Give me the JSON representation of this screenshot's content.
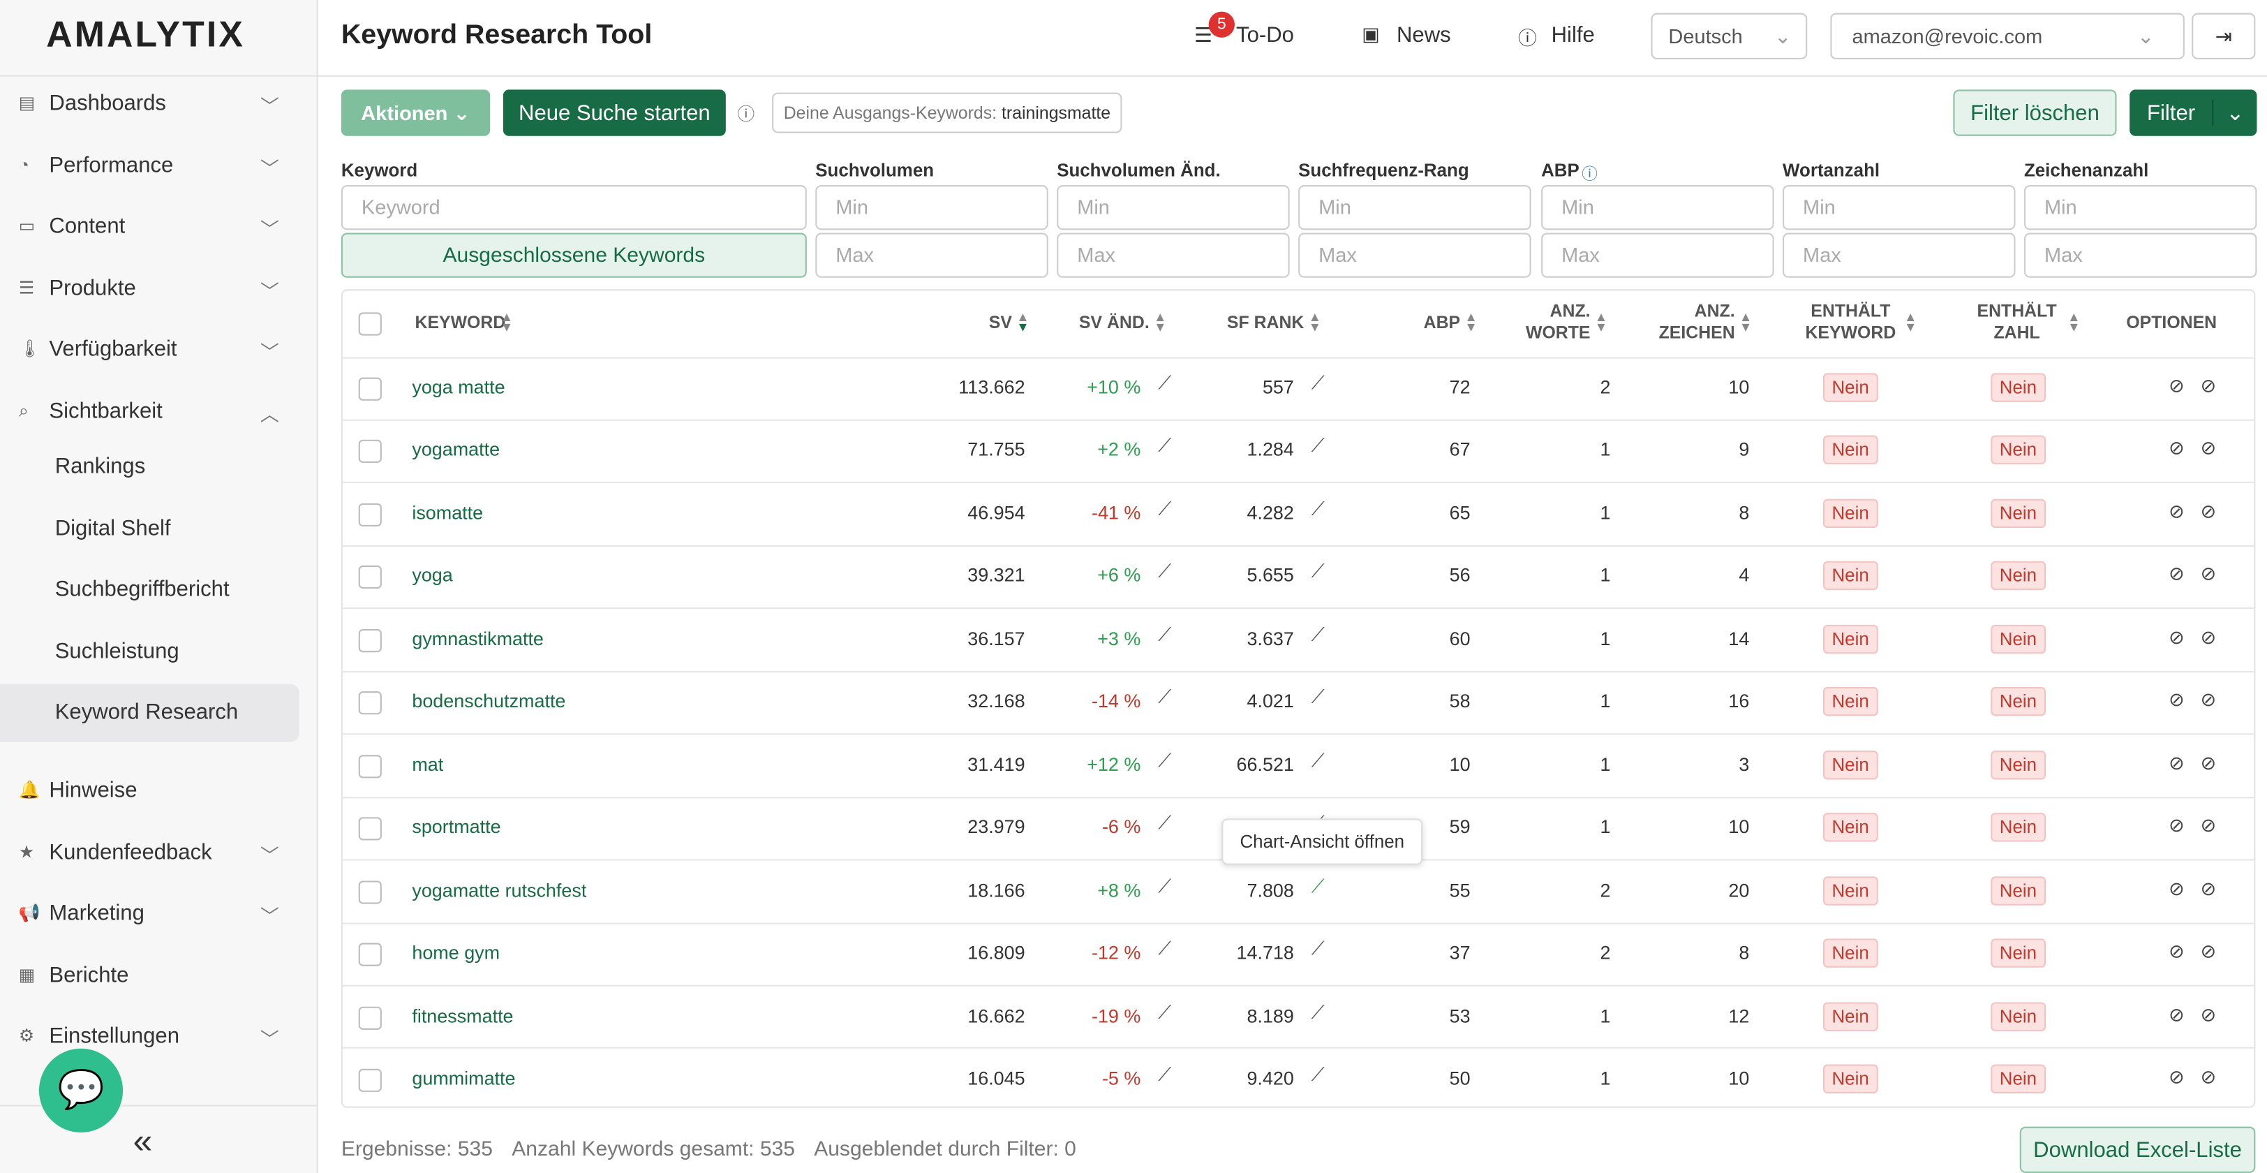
{
  "sidebar": {
    "logo": "AMALYTIX",
    "items": [
      {
        "label": "Dashboards",
        "expandable": true
      },
      {
        "label": "Performance",
        "expandable": true
      },
      {
        "label": "Content",
        "expandable": true
      },
      {
        "label": "Produkte",
        "expandable": true
      },
      {
        "label": "Verfügbarkeit",
        "expandable": true
      },
      {
        "label": "Sichtbarkeit",
        "expandable": true,
        "open": true
      },
      {
        "label": "Hinweise",
        "expandable": false
      },
      {
        "label": "Kundenfeedback",
        "expandable": true
      },
      {
        "label": "Marketing",
        "expandable": true
      },
      {
        "label": "Berichte",
        "expandable": false
      },
      {
        "label": "Einstellungen",
        "expandable": true
      }
    ],
    "subitems": [
      "Rankings",
      "Digital Shelf",
      "Suchbegriffbericht",
      "Suchleistung",
      "Keyword Research"
    ]
  },
  "header": {
    "title": "Keyword Research Tool",
    "todo_count": "5",
    "todo": "To-Do",
    "news": "News",
    "help": "Hilfe",
    "language": "Deutsch",
    "account": "amazon@revoic.com"
  },
  "toolbar": {
    "actions": "Aktionen",
    "new_search": "Neue Suche starten",
    "seed_label": "Deine Ausgangs-Keywords:",
    "seed": "trainingsmatte",
    "clear_filter": "Filter löschen",
    "filter": "Filter"
  },
  "filters": {
    "labels": [
      "Keyword",
      "Suchvolumen",
      "Suchvolumen Änd.",
      "Suchfrequenz-Rang",
      "ABP",
      "Wortanzahl",
      "Zeichenanzahl"
    ],
    "keyword_placeholder": "Keyword",
    "min": "Min",
    "max": "Max",
    "excluded": "Ausgeschlossene Keywords"
  },
  "table": {
    "columns": [
      "KEYWORD",
      "SV",
      "SV ÄND.",
      "SF RANK",
      "ABP",
      "ANZ. WORTE",
      "ANZ. ZEICHEN",
      "ENTHÄLT KEYWORD",
      "ENTHÄLT ZAHL",
      "OPTIONEN"
    ],
    "rows": [
      [
        "yoga matte",
        "113.662",
        "+10 %",
        "557",
        "72",
        "2",
        "10",
        "Nein",
        "Nein"
      ],
      [
        "yogamatte",
        "71.755",
        "+2 %",
        "1.284",
        "67",
        "1",
        "9",
        "Nein",
        "Nein"
      ],
      [
        "isomatte",
        "46.954",
        "-41 %",
        "4.282",
        "65",
        "1",
        "8",
        "Nein",
        "Nein"
      ],
      [
        "yoga",
        "39.321",
        "+6 %",
        "5.655",
        "56",
        "1",
        "4",
        "Nein",
        "Nein"
      ],
      [
        "gymnastikmatte",
        "36.157",
        "+3 %",
        "3.637",
        "60",
        "1",
        "14",
        "Nein",
        "Nein"
      ],
      [
        "bodenschutzmatte",
        "32.168",
        "-14 %",
        "4.021",
        "58",
        "1",
        "16",
        "Nein",
        "Nein"
      ],
      [
        "mat",
        "31.419",
        "+12 %",
        "66.521",
        "10",
        "1",
        "3",
        "Nein",
        "Nein"
      ],
      [
        "sportmatte",
        "23.979",
        "-6 %",
        null,
        "59",
        "1",
        "10",
        "Nein",
        "Nein"
      ],
      [
        "yogamatte rutschfest",
        "18.166",
        "+8 %",
        "7.808",
        "55",
        "2",
        "20",
        "Nein",
        "Nein"
      ],
      [
        "home gym",
        "16.809",
        "-12 %",
        "14.718",
        "37",
        "2",
        "8",
        "Nein",
        "Nein"
      ],
      [
        "fitnessmatte",
        "16.662",
        "-19 %",
        "8.189",
        "53",
        "1",
        "12",
        "Nein",
        "Nein"
      ],
      [
        "gummimatte",
        "16.045",
        "-5 %",
        "9.420",
        "50",
        "1",
        "10",
        "Nein",
        "Nein"
      ]
    ],
    "tooltip": "Chart-Ansicht öffnen"
  },
  "footer": {
    "results": "Ergebnisse: 535",
    "total": "Anzahl Keywords gesamt: 535",
    "hidden": "Ausgeblendet durch Filter: 0",
    "download": "Download Excel-Liste"
  }
}
